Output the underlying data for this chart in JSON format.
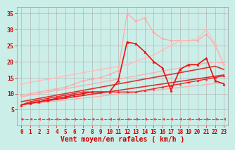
{
  "title": "",
  "xlabel": "Vent moyen/en rafales ( km/h )",
  "ylabel": "",
  "bg_color": "#cceee8",
  "grid_color": "#aaaaaa",
  "xlim": [
    -0.5,
    23.5
  ],
  "ylim": [
    0,
    37
  ],
  "yticks": [
    5,
    10,
    15,
    20,
    25,
    30,
    35
  ],
  "xticks": [
    0,
    1,
    2,
    3,
    4,
    5,
    6,
    7,
    8,
    9,
    10,
    11,
    12,
    13,
    14,
    15,
    16,
    17,
    18,
    19,
    20,
    21,
    22,
    23
  ],
  "lines": [
    {
      "comment": "light pink diagonal line 1 - low slope from ~7 to ~14",
      "x": [
        0,
        1,
        2,
        3,
        4,
        5,
        6,
        7,
        8,
        9,
        10,
        11,
        12,
        13,
        14,
        15,
        16,
        17,
        18,
        19,
        20,
        21,
        22,
        23
      ],
      "y": [
        6.5,
        6.8,
        7.1,
        7.4,
        7.7,
        8.0,
        8.3,
        8.6,
        8.9,
        9.2,
        9.5,
        9.8,
        10.1,
        10.4,
        10.7,
        11.0,
        11.3,
        11.6,
        11.9,
        12.2,
        12.5,
        12.8,
        13.1,
        13.4
      ],
      "color": "#ffaaaa",
      "lw": 0.9,
      "marker": null,
      "ls": "-"
    },
    {
      "comment": "light pink diagonal line 2 - from ~9 to ~19.5",
      "x": [
        0,
        1,
        2,
        3,
        4,
        5,
        6,
        7,
        8,
        9,
        10,
        11,
        12,
        13,
        14,
        15,
        16,
        17,
        18,
        19,
        20,
        21,
        22,
        23
      ],
      "y": [
        9.0,
        9.5,
        10.0,
        10.5,
        11.0,
        11.5,
        12.0,
        12.5,
        13.0,
        13.5,
        14.0,
        14.5,
        15.0,
        15.5,
        16.0,
        16.5,
        17.0,
        17.5,
        18.0,
        18.5,
        19.0,
        19.5,
        19.8,
        19.5
      ],
      "color": "#ffaaaa",
      "lw": 0.9,
      "marker": null,
      "ls": "-"
    },
    {
      "comment": "light pink with small diamond markers - rises from 10 to 26, peaked near x=12 with big spike at 35",
      "x": [
        0,
        1,
        2,
        3,
        4,
        5,
        6,
        7,
        8,
        9,
        10,
        11,
        12,
        13,
        14,
        15,
        16,
        17,
        18,
        19,
        20,
        21,
        22,
        23
      ],
      "y": [
        9.5,
        10.0,
        10.5,
        11.0,
        11.5,
        12.0,
        13.0,
        14.0,
        14.5,
        15.0,
        16.0,
        17.0,
        35.0,
        32.5,
        33.5,
        29.0,
        27.0,
        26.5,
        26.5,
        26.5,
        26.5,
        28.5,
        25.0,
        19.0
      ],
      "color": "#ffaaaa",
      "lw": 0.9,
      "marker": "D",
      "ms": 2,
      "ls": "-"
    },
    {
      "comment": "light pink diagonal - from 13 to 28 (broad slope), peak at x=21 ~30",
      "x": [
        0,
        1,
        2,
        3,
        4,
        5,
        6,
        7,
        8,
        9,
        10,
        11,
        12,
        13,
        14,
        15,
        16,
        17,
        18,
        19,
        20,
        21,
        22,
        23
      ],
      "y": [
        13.0,
        13.5,
        14.0,
        14.5,
        15.0,
        15.5,
        16.0,
        16.5,
        17.0,
        17.5,
        18.0,
        18.5,
        19.0,
        20.0,
        21.0,
        22.0,
        23.5,
        25.0,
        26.5,
        26.5,
        27.0,
        30.0,
        25.5,
        19.0
      ],
      "color": "#ffbbbb",
      "lw": 0.9,
      "marker": "D",
      "ms": 2,
      "ls": "-"
    },
    {
      "comment": "dark red straight line - from ~6.5 to ~16",
      "x": [
        0,
        1,
        2,
        3,
        4,
        5,
        6,
        7,
        8,
        9,
        10,
        11,
        12,
        13,
        14,
        15,
        16,
        17,
        18,
        19,
        20,
        21,
        22,
        23
      ],
      "y": [
        6.5,
        7.0,
        7.4,
        7.8,
        8.2,
        8.6,
        9.0,
        9.4,
        9.8,
        10.2,
        10.6,
        11.0,
        11.4,
        11.8,
        12.2,
        12.6,
        13.0,
        13.4,
        13.8,
        14.2,
        14.6,
        15.0,
        15.4,
        15.8
      ],
      "color": "#dd3333",
      "lw": 1.2,
      "marker": null,
      "ls": "-"
    },
    {
      "comment": "dark red straight line 2 - from ~7 to ~17.5",
      "x": [
        0,
        1,
        2,
        3,
        4,
        5,
        6,
        7,
        8,
        9,
        10,
        11,
        12,
        13,
        14,
        15,
        16,
        17,
        18,
        19,
        20,
        21,
        22,
        23
      ],
      "y": [
        7.5,
        8.0,
        8.5,
        9.0,
        9.5,
        10.0,
        10.5,
        11.0,
        11.5,
        12.0,
        12.5,
        13.0,
        13.5,
        14.0,
        14.5,
        15.0,
        15.5,
        16.0,
        16.5,
        17.0,
        17.5,
        18.0,
        18.5,
        17.5
      ],
      "color": "#dd3333",
      "lw": 1.2,
      "marker": null,
      "ls": "-"
    },
    {
      "comment": "red with triangle markers - peaks sharply at x=12 ~26, drops to 11 at x=17, then rises and drops",
      "x": [
        0,
        1,
        2,
        3,
        4,
        5,
        6,
        7,
        8,
        9,
        10,
        11,
        12,
        13,
        14,
        15,
        16,
        17,
        18,
        19,
        20,
        21,
        22,
        23
      ],
      "y": [
        6.5,
        7.0,
        7.5,
        8.0,
        8.5,
        9.0,
        9.5,
        10.0,
        10.5,
        10.5,
        10.5,
        14.0,
        26.0,
        25.5,
        23.0,
        20.0,
        18.0,
        11.0,
        17.5,
        19.0,
        19.0,
        21.0,
        14.0,
        13.0
      ],
      "color": "#ee1111",
      "lw": 1.2,
      "marker": "^",
      "ms": 2.5,
      "ls": "-"
    },
    {
      "comment": "bright red with small left-arrow markers near y=2 - dashed horizontal",
      "x": [
        0,
        1,
        2,
        3,
        4,
        5,
        6,
        7,
        8,
        9,
        10,
        11,
        12,
        13,
        14,
        15,
        16,
        17,
        18,
        19,
        20,
        21,
        22,
        23
      ],
      "y": [
        2.0,
        2.0,
        2.0,
        2.0,
        2.0,
        2.0,
        2.0,
        2.0,
        2.0,
        2.0,
        2.0,
        2.0,
        2.0,
        2.0,
        2.0,
        2.0,
        2.0,
        2.0,
        2.0,
        2.0,
        2.0,
        2.0,
        2.0,
        2.0
      ],
      "color": "#ee4444",
      "lw": 0.8,
      "marker": 4,
      "ms": 3,
      "ls": "--"
    },
    {
      "comment": "red curved line with small markers - rises from ~6.5 at x=0 quickly to ~10 then levels",
      "x": [
        0,
        1,
        2,
        3,
        4,
        5,
        6,
        7,
        8,
        9,
        10,
        11,
        12,
        13,
        14,
        15,
        16,
        17,
        18,
        19,
        20,
        21,
        22,
        23
      ],
      "y": [
        6.5,
        7.5,
        8.0,
        8.5,
        9.0,
        9.5,
        10.0,
        10.5,
        10.5,
        10.5,
        10.5,
        10.5,
        10.5,
        10.5,
        11.0,
        11.5,
        12.0,
        12.5,
        13.0,
        13.5,
        14.0,
        14.5,
        15.0,
        15.5
      ],
      "color": "#ee2222",
      "lw": 1.0,
      "marker": "^",
      "ms": 2,
      "ls": "-"
    }
  ],
  "tick_color": "#cc0000",
  "tick_fontsize": 5.5,
  "label_fontsize": 7,
  "label_color": "#cc0000"
}
